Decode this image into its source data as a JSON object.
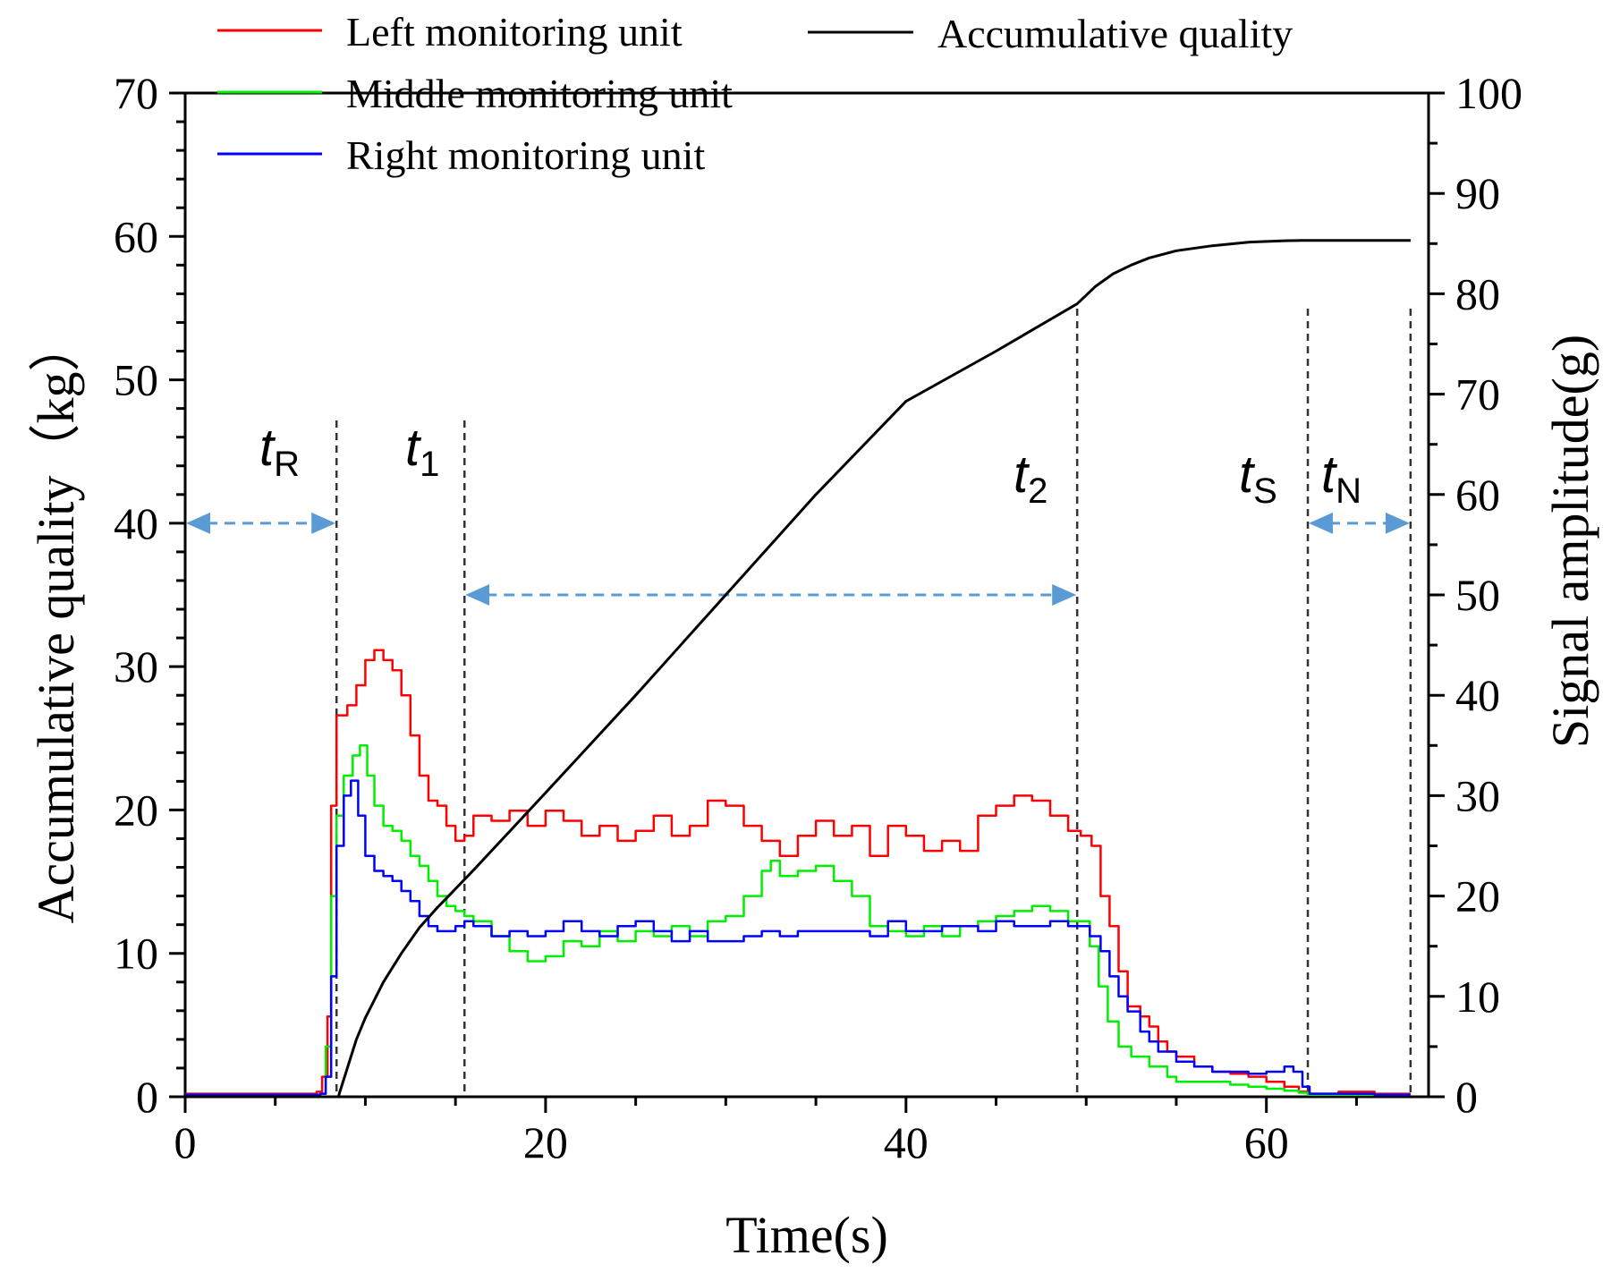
{
  "chart_data": {
    "type": "line",
    "xlabel": "Time(s)",
    "ylabel_left": "Accumulative quality（kg）",
    "ylabel_right": "Signal amplitude(g)",
    "xlim": [
      0,
      69
    ],
    "ylim_left": [
      0,
      70
    ],
    "ylim_right": [
      0,
      100
    ],
    "x_ticks": [
      0,
      20,
      40,
      60
    ],
    "y_left_ticks": [
      0,
      10,
      20,
      30,
      40,
      50,
      60,
      70
    ],
    "y_right_ticks": [
      0,
      10,
      20,
      30,
      40,
      50,
      60,
      70,
      80,
      90,
      100
    ],
    "legend": [
      {
        "label": "Left monitoring unit",
        "color": "#ff0000"
      },
      {
        "label": "Middle monitoring unit",
        "color": "#00ee00"
      },
      {
        "label": "Right monitoring unit",
        "color": "#0000ff"
      },
      {
        "label": "Accumulative quality",
        "color": "#000000"
      }
    ],
    "series": [
      {
        "name": "Left monitoring unit",
        "axis": "right",
        "color": "#ff0000",
        "x": [
          0,
          7.3,
          7.6,
          7.9,
          8.1,
          8.4,
          9.0,
          9.5,
          10.0,
          10.5,
          11.0,
          11.5,
          12.0,
          12.5,
          13.0,
          13.5,
          14.0,
          14.5,
          15.0,
          15.5,
          16.0,
          17.0,
          18.0,
          19.0,
          20.0,
          21.0,
          22.0,
          23.0,
          24.0,
          25.0,
          26.0,
          27.0,
          28.0,
          29.0,
          30.0,
          31.0,
          32.0,
          33.0,
          34.0,
          35.0,
          36.0,
          37.0,
          38.0,
          39.0,
          40.0,
          41.0,
          42.0,
          43.0,
          44.0,
          45.0,
          46.0,
          47.0,
          48.0,
          49.0,
          49.7,
          50.3,
          50.8,
          51.3,
          51.8,
          52.3,
          53.0,
          53.5,
          54.0,
          54.5,
          55.0,
          56.0,
          57.0,
          58.0,
          59.0,
          60.0,
          61.0,
          61.8,
          62.3,
          63.0,
          64.0,
          66.0,
          68.0
        ],
        "values": [
          0.3,
          0.5,
          2.0,
          8.0,
          29.0,
          38.0,
          39.0,
          41.0,
          43.5,
          44.5,
          43.5,
          42.5,
          40.0,
          36.0,
          32.0,
          29.5,
          29.0,
          27.0,
          25.5,
          26.0,
          28.0,
          27.5,
          28.5,
          27.0,
          28.5,
          27.5,
          26.0,
          27.0,
          25.5,
          26.5,
          28.0,
          26.0,
          27.0,
          29.5,
          29.0,
          27.0,
          25.5,
          24.0,
          26.0,
          27.5,
          26.0,
          27.0,
          24.0,
          27.0,
          26.0,
          24.5,
          25.5,
          24.5,
          28.0,
          29.0,
          30.0,
          29.5,
          28.0,
          26.5,
          26.0,
          25.0,
          20.0,
          17.0,
          12.5,
          9.0,
          8.0,
          7.0,
          5.5,
          4.5,
          4.0,
          3.0,
          2.5,
          2.3,
          2.0,
          1.5,
          1.0,
          0.5,
          0.3,
          0.3,
          0.5,
          0.3,
          0.3
        ]
      },
      {
        "name": "Middle monitoring unit",
        "axis": "right",
        "color": "#00ee00",
        "x": [
          0,
          7.5,
          7.8,
          8.1,
          8.4,
          8.8,
          9.3,
          9.7,
          10.1,
          10.5,
          11.0,
          11.5,
          12.0,
          12.5,
          13.0,
          13.5,
          14.0,
          14.5,
          15.0,
          15.5,
          16.0,
          17.0,
          18.0,
          19.0,
          20.0,
          21.0,
          22.0,
          23.0,
          24.0,
          25.0,
          26.0,
          27.0,
          28.0,
          29.0,
          30.0,
          31.0,
          32.0,
          32.5,
          33.0,
          34.0,
          35.0,
          36.0,
          37.0,
          38.0,
          39.0,
          40.0,
          41.0,
          42.0,
          43.0,
          44.0,
          45.0,
          46.0,
          47.0,
          48.0,
          49.0,
          49.6,
          50.2,
          50.7,
          51.2,
          51.8,
          52.5,
          53.5,
          54.5,
          55.0,
          56.0,
          57.0,
          58.0,
          59.0,
          60.0,
          61.0,
          61.8,
          62.3,
          64.0,
          66.0,
          68.0
        ],
        "values": [
          0.2,
          0.3,
          5.0,
          20.0,
          28.0,
          32.0,
          34.0,
          35.0,
          32.0,
          29.0,
          27.0,
          26.5,
          25.5,
          24.0,
          23.0,
          21.5,
          20.0,
          19.0,
          18.5,
          18.0,
          17.5,
          16.0,
          14.5,
          13.5,
          14.0,
          15.5,
          15.0,
          16.5,
          15.5,
          16.5,
          16.0,
          17.0,
          16.0,
          17.5,
          18.0,
          20.0,
          22.5,
          23.5,
          22.0,
          22.5,
          23.0,
          21.5,
          20.0,
          17.0,
          16.5,
          16.0,
          17.0,
          16.0,
          17.0,
          17.5,
          18.0,
          18.5,
          19.0,
          18.5,
          17.5,
          17.5,
          15.0,
          11.0,
          7.5,
          5.0,
          4.0,
          3.0,
          2.0,
          1.5,
          1.5,
          1.5,
          1.2,
          1.0,
          0.8,
          0.6,
          0.4,
          0.2,
          0.2,
          0.2,
          0.2
        ]
      },
      {
        "name": "Right monitoring unit",
        "axis": "right",
        "color": "#0000ff",
        "x": [
          0,
          7.5,
          7.8,
          8.1,
          8.4,
          8.8,
          9.2,
          9.6,
          10.0,
          10.5,
          11.0,
          11.5,
          12.0,
          12.5,
          13.0,
          13.5,
          14.0,
          14.5,
          15.0,
          15.5,
          16.0,
          17.0,
          18.0,
          19.0,
          20.0,
          21.0,
          22.0,
          23.0,
          24.0,
          25.0,
          26.0,
          27.0,
          28.0,
          29.0,
          30.0,
          31.0,
          32.0,
          33.0,
          34.0,
          35.0,
          36.0,
          37.0,
          38.0,
          39.0,
          40.0,
          41.0,
          42.0,
          43.0,
          44.0,
          45.0,
          46.0,
          47.0,
          48.0,
          49.0,
          49.6,
          50.2,
          50.8,
          51.3,
          51.8,
          52.3,
          53.0,
          53.5,
          54.0,
          55.0,
          56.0,
          57.0,
          58.0,
          59.0,
          60.0,
          61.0,
          61.5,
          62.0,
          62.4,
          64.0,
          66.0,
          68.0
        ],
        "values": [
          0.2,
          0.3,
          2.0,
          12.0,
          25.0,
          30.0,
          31.5,
          28.0,
          24.0,
          22.5,
          22.0,
          21.5,
          20.5,
          19.5,
          18.0,
          17.0,
          16.5,
          16.5,
          17.0,
          17.5,
          17.0,
          16.0,
          16.5,
          16.0,
          16.5,
          17.5,
          16.5,
          16.0,
          17.0,
          17.5,
          16.5,
          15.5,
          16.5,
          15.5,
          15.5,
          16.0,
          16.5,
          16.0,
          16.5,
          16.5,
          16.5,
          16.5,
          16.0,
          17.5,
          16.5,
          16.5,
          17.0,
          17.0,
          16.5,
          17.5,
          17.0,
          17.0,
          17.5,
          17.0,
          17.0,
          16.0,
          14.5,
          12.0,
          10.0,
          8.5,
          6.5,
          5.5,
          4.5,
          3.5,
          3.0,
          2.5,
          2.5,
          2.3,
          2.5,
          3.0,
          2.5,
          1.0,
          0.3,
          0.3,
          0.2,
          0.2
        ]
      },
      {
        "name": "Accumulative quality",
        "axis": "left",
        "color": "#000000",
        "x": [
          0,
          8.5,
          9.0,
          9.5,
          10.0,
          11.0,
          12.0,
          13.0,
          14.0,
          15.0,
          16.0,
          18.0,
          20.0,
          25.0,
          30.0,
          35.0,
          40.0,
          45.0,
          49.5,
          50.5,
          51.5,
          52.5,
          53.5,
          55.0,
          57.0,
          59.0,
          61.0,
          62.0,
          64.0,
          66.0,
          68.0
        ],
        "values": [
          0,
          0,
          2.0,
          4.0,
          5.5,
          8.0,
          10.0,
          11.8,
          13.2,
          14.5,
          15.8,
          18.5,
          21.2,
          28.0,
          35.0,
          42.0,
          48.5,
          52.0,
          55.3,
          56.5,
          57.4,
          58.0,
          58.5,
          59.0,
          59.35,
          59.6,
          59.7,
          59.72,
          59.72,
          59.72,
          59.72
        ]
      }
    ],
    "markers": [
      {
        "label": "t",
        "sub": "R",
        "x": 8.4
      },
      {
        "label": "t",
        "sub": "1",
        "x": 15.5
      },
      {
        "label": "t",
        "sub": "2",
        "x": 49.5
      },
      {
        "label": "t",
        "sub": "S",
        "x": 62.3
      },
      {
        "label": "t",
        "sub": "N",
        "x": 68.0
      }
    ],
    "intervals": [
      {
        "from": 0,
        "to": 8.4,
        "y_left": 40
      },
      {
        "from": 15.5,
        "to": 49.5,
        "y_left": 35
      },
      {
        "from": 62.3,
        "to": 68.0,
        "y_left": 40
      }
    ]
  }
}
